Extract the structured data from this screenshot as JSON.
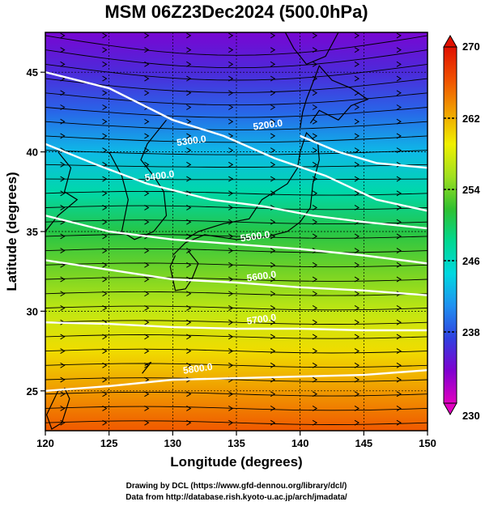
{
  "chart_data": {
    "type": "heatmap",
    "title": "MSM 06Z23Dec2024 (500.0hPa)",
    "xlabel": "Longitude (degrees)",
    "ylabel": "Latitude  (degrees)",
    "xlim": [
      120,
      150
    ],
    "ylim": [
      22.5,
      47.5
    ],
    "x_ticks": [
      120,
      125,
      130,
      135,
      140,
      145,
      150
    ],
    "y_ticks": [
      25,
      30,
      35,
      40,
      45
    ],
    "x_tick_labels": [
      "120",
      "125",
      "130",
      "135",
      "140",
      "145",
      "150"
    ],
    "y_tick_labels": [
      "25",
      "30",
      "35",
      "40",
      "45"
    ],
    "grid": true,
    "colorbar": {
      "min": 230,
      "max": 270,
      "ticks": [
        230,
        238,
        246,
        254,
        262,
        270
      ],
      "tick_labels": [
        "230",
        "238",
        "246",
        "254",
        "262",
        "270"
      ],
      "colors": [
        "#e000c0",
        "#8000d0",
        "#3040e0",
        "#2090f0",
        "#00d8e0",
        "#00d890",
        "#30c030",
        "#a0e020",
        "#f0f000",
        "#f0a000",
        "#f05000",
        "#e01000"
      ],
      "position": "right"
    },
    "field_description_levels": [
      {
        "lat": 47.5,
        "value": 234
      },
      {
        "lat": 45.0,
        "value": 236
      },
      {
        "lat": 42.5,
        "value": 239
      },
      {
        "lat": 40.0,
        "value": 243
      },
      {
        "lat": 37.5,
        "value": 247
      },
      {
        "lat": 35.0,
        "value": 251
      },
      {
        "lat": 32.5,
        "value": 254
      },
      {
        "lat": 30.0,
        "value": 257
      },
      {
        "lat": 27.5,
        "value": 260
      },
      {
        "lat": 25.0,
        "value": 263
      },
      {
        "lat": 22.5,
        "value": 266
      }
    ],
    "contours": [
      {
        "label": "5200.0",
        "points": [
          [
            140.0,
            41.0
          ],
          [
            143.0,
            40.0
          ],
          [
            146.0,
            39.3
          ],
          [
            150.0,
            39.0
          ]
        ],
        "label_at": [
          137.5,
          41.5
        ]
      },
      {
        "label": "5300.0",
        "points": [
          [
            120.0,
            45.0
          ],
          [
            125.0,
            44.0
          ],
          [
            130.0,
            42.0
          ],
          [
            134.0,
            41.0
          ],
          [
            138.0,
            39.6
          ],
          [
            142.0,
            38.5
          ],
          [
            146.0,
            37.0
          ],
          [
            150.0,
            36.3
          ]
        ],
        "label_at": [
          131.5,
          40.5
        ]
      },
      {
        "label": "5400.0",
        "points": [
          [
            120.0,
            40.5
          ],
          [
            124.0,
            39.2
          ],
          [
            128.0,
            38.0
          ],
          [
            133.0,
            37.0
          ],
          [
            137.0,
            36.6
          ],
          [
            141.0,
            36.0
          ],
          [
            145.0,
            35.6
          ],
          [
            150.0,
            35.2
          ]
        ],
        "label_at": [
          129.0,
          38.3
        ]
      },
      {
        "label": "5500.0",
        "points": [
          [
            120.0,
            36.0
          ],
          [
            125.0,
            35.0
          ],
          [
            130.0,
            34.5
          ],
          [
            135.0,
            34.2
          ],
          [
            140.0,
            33.9
          ],
          [
            145.0,
            33.5
          ],
          [
            150.0,
            33.0
          ]
        ],
        "label_at": [
          136.5,
          34.5
        ]
      },
      {
        "label": "5600.0",
        "points": [
          [
            120.0,
            33.2
          ],
          [
            125.0,
            32.6
          ],
          [
            130.0,
            32.0
          ],
          [
            135.0,
            31.8
          ],
          [
            140.0,
            31.5
          ],
          [
            145.0,
            31.3
          ],
          [
            150.0,
            31.0
          ]
        ],
        "label_at": [
          137.0,
          32.0
        ]
      },
      {
        "label": "5700.0",
        "points": [
          [
            120.0,
            29.3
          ],
          [
            125.0,
            29.2
          ],
          [
            130.0,
            29.0
          ],
          [
            135.0,
            28.9
          ],
          [
            140.0,
            28.9
          ],
          [
            145.0,
            28.8
          ],
          [
            150.0,
            28.8
          ]
        ],
        "label_at": [
          137.0,
          29.3
        ]
      },
      {
        "label": "5800.0",
        "points": [
          [
            120.0,
            25.0
          ],
          [
            125.0,
            25.3
          ],
          [
            130.0,
            25.7
          ],
          [
            135.0,
            25.8
          ],
          [
            140.0,
            25.9
          ],
          [
            145.0,
            26.0
          ],
          [
            150.0,
            26.3
          ]
        ],
        "label_at": [
          132.0,
          26.2
        ]
      }
    ]
  },
  "credits": {
    "line1": "Drawing by DCL (https://www.gfd-dennou.org/library/dcl/)",
    "line2": "Data from http://database.rish.kyoto-u.ac.jp/arch/jmadata/"
  }
}
